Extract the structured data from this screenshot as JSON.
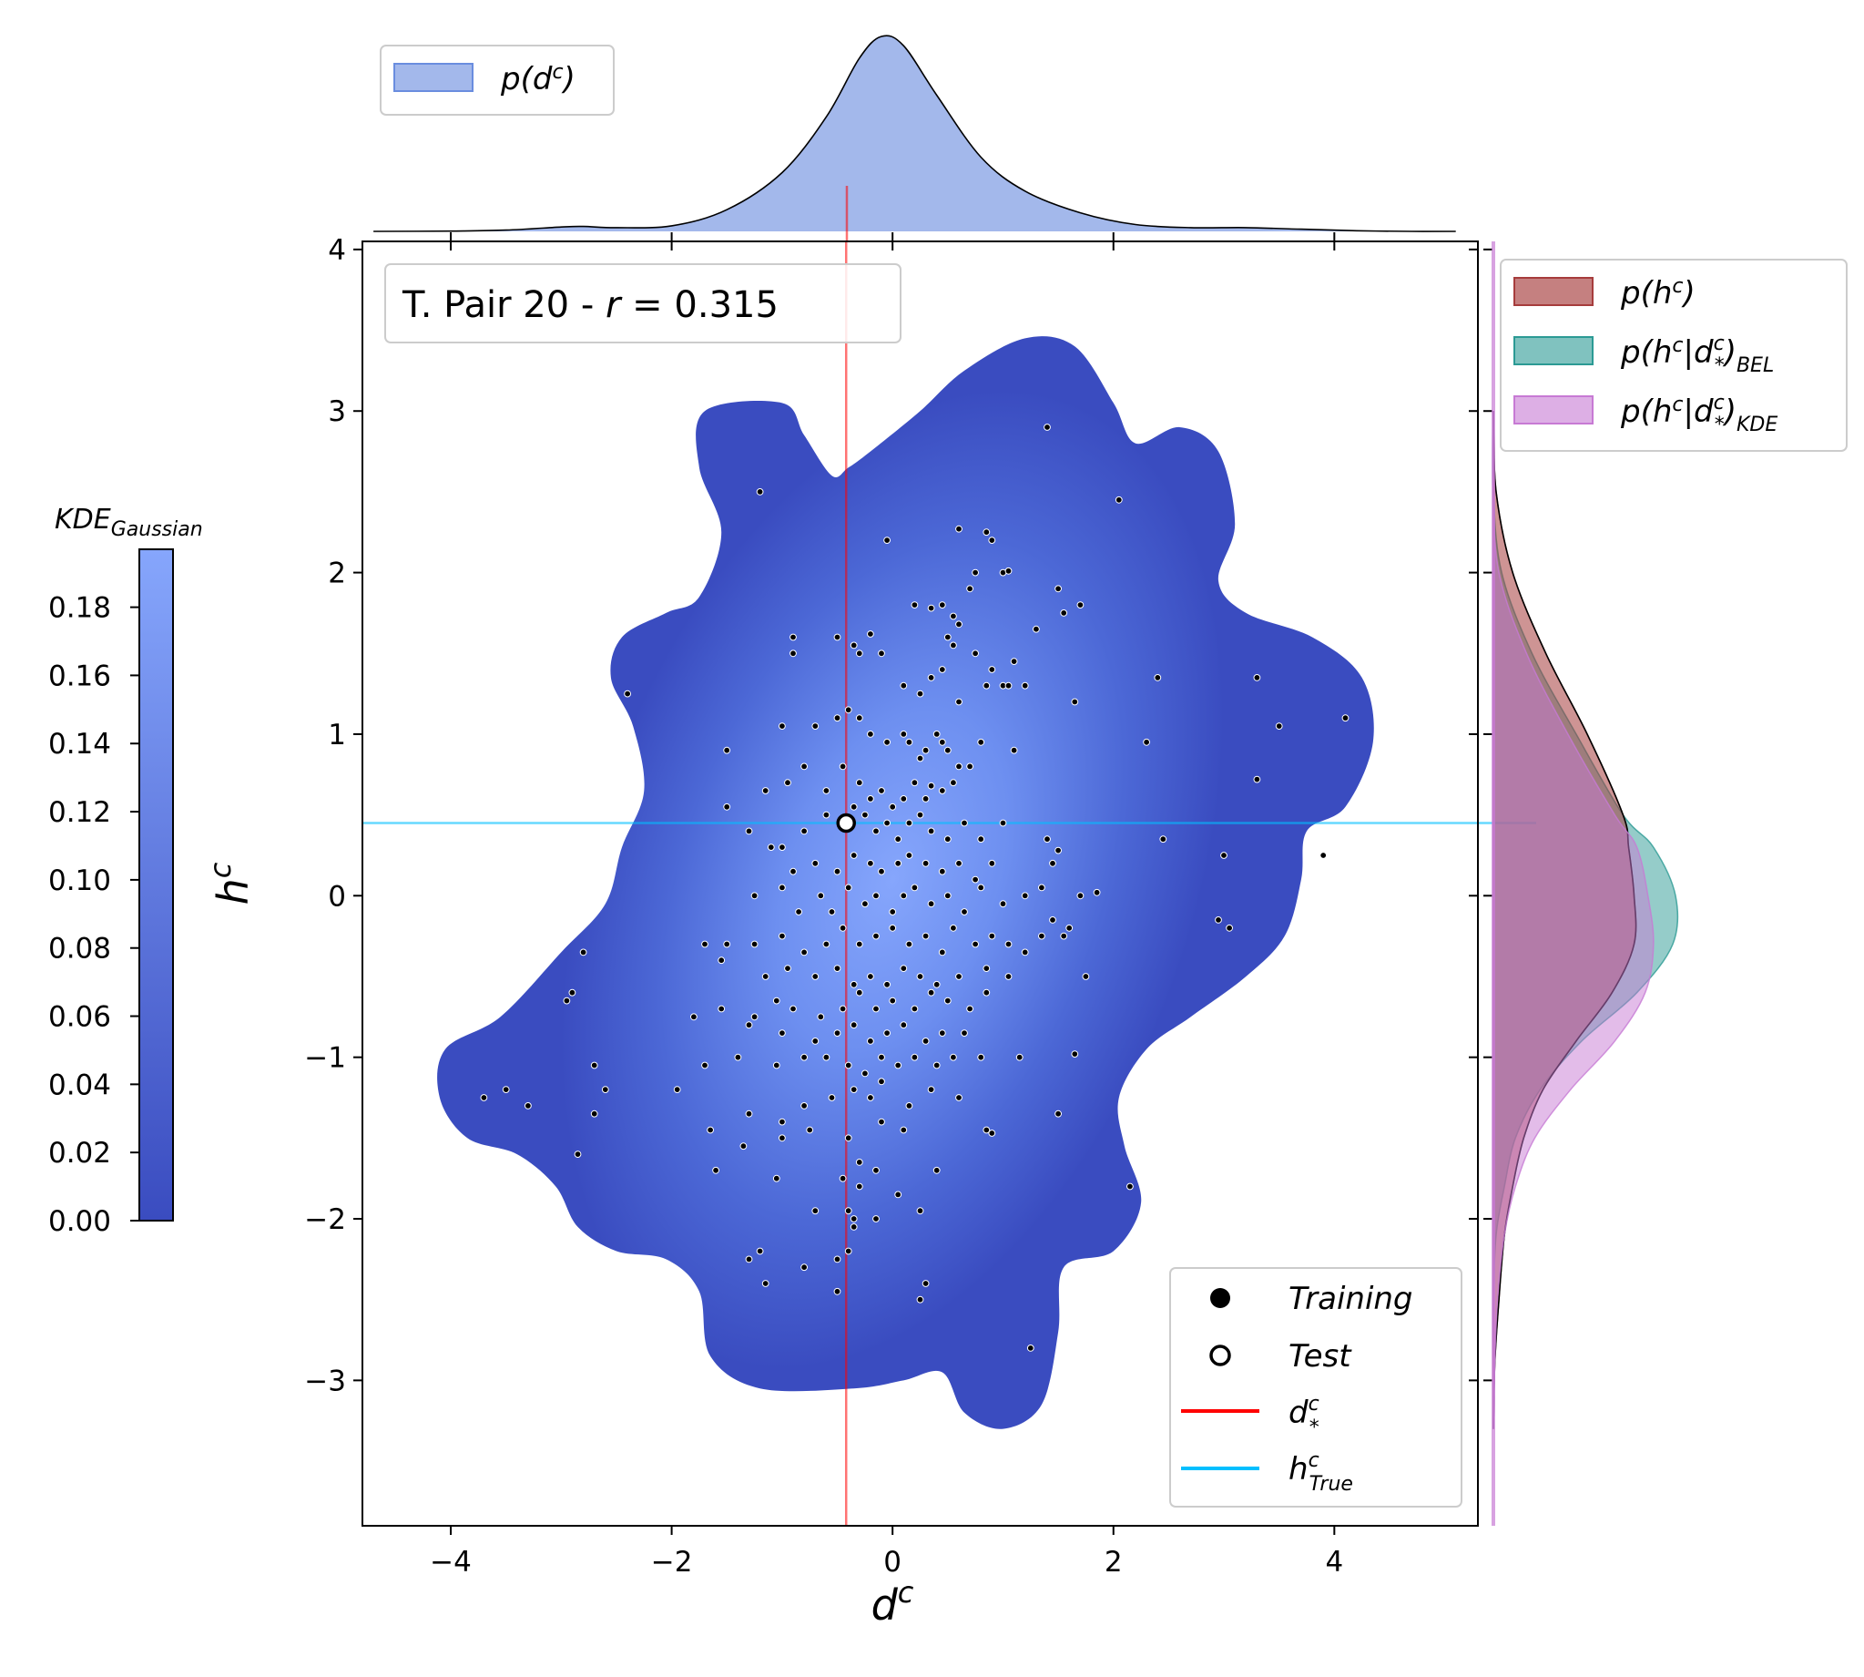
{
  "chart_data": [
    {
      "type": "scatter",
      "xlabel": "d",
      "xlabel_sup": "c",
      "ylabel": "h",
      "ylabel_sup": "c",
      "xlim": [
        -4.8,
        5.3
      ],
      "ylim": [
        -3.9,
        4.05
      ],
      "xticks": [
        -4,
        -2,
        0,
        2,
        4
      ],
      "yticks": [
        -3,
        -2,
        -1,
        0,
        1,
        2,
        3,
        4
      ],
      "grid": false,
      "annotation": {
        "prefix": "T. Pair 20 - ",
        "var": "r",
        "suffix": " = 0.315"
      },
      "reference_lines": {
        "d_star": -0.42,
        "h_true": 0.45
      },
      "test_point": {
        "x": -0.42,
        "y": 0.45
      },
      "kde_colorbar": {
        "title_main": "KDE",
        "title_sub": "Gaussian",
        "ticks": [
          "0.00",
          "0.02",
          "0.04",
          "0.06",
          "0.08",
          "0.10",
          "0.12",
          "0.14",
          "0.16",
          "0.18"
        ],
        "max": 0.197,
        "color_low": "#3a4cc0",
        "color_high": "#86a6fc"
      },
      "legend_main": [
        {
          "label": "Training",
          "marker": "filled-circle"
        },
        {
          "label": "Test",
          "marker": "open-circle"
        },
        {
          "label": "d",
          "sup": "c",
          "sub": "*",
          "color": "#ff0000"
        },
        {
          "label": "h",
          "sup": "c",
          "sub": "True",
          "color": "#00bfff"
        }
      ],
      "training_points": [
        [
          -1.2,
          2.5
        ],
        [
          -0.05,
          2.2
        ],
        [
          0.6,
          2.27
        ],
        [
          0.85,
          2.25
        ],
        [
          0.9,
          2.2
        ],
        [
          0.75,
          2.0
        ],
        [
          1.0,
          2.0
        ],
        [
          1.05,
          2.01
        ],
        [
          0.2,
          1.8
        ],
        [
          0.35,
          1.78
        ],
        [
          0.45,
          1.8
        ],
        [
          0.55,
          1.73
        ],
        [
          0.6,
          1.68
        ],
        [
          0.7,
          1.9
        ],
        [
          1.4,
          2.9
        ],
        [
          2.05,
          2.45
        ],
        [
          1.5,
          1.9
        ],
        [
          1.7,
          1.8
        ],
        [
          1.3,
          1.65
        ],
        [
          1.55,
          1.75
        ],
        [
          -2.4,
          1.25
        ],
        [
          -0.9,
          1.6
        ],
        [
          -0.9,
          1.5
        ],
        [
          -0.5,
          1.6
        ],
        [
          -0.35,
          1.55
        ],
        [
          -0.3,
          1.5
        ],
        [
          -0.2,
          1.62
        ],
        [
          -0.1,
          1.5
        ],
        [
          0.1,
          1.3
        ],
        [
          0.25,
          1.25
        ],
        [
          0.35,
          1.35
        ],
        [
          0.45,
          1.4
        ],
        [
          0.5,
          1.6
        ],
        [
          0.55,
          1.55
        ],
        [
          0.6,
          1.2
        ],
        [
          0.75,
          1.5
        ],
        [
          0.85,
          1.3
        ],
        [
          0.9,
          1.4
        ],
        [
          1.0,
          1.3
        ],
        [
          1.1,
          1.45
        ],
        [
          1.05,
          1.3
        ],
        [
          1.2,
          1.3
        ],
        [
          1.65,
          1.2
        ],
        [
          2.4,
          1.35
        ],
        [
          3.3,
          1.35
        ],
        [
          3.5,
          1.05
        ],
        [
          4.1,
          1.1
        ],
        [
          2.3,
          0.95
        ],
        [
          3.3,
          0.72
        ],
        [
          -1.0,
          1.05
        ],
        [
          -0.7,
          1.05
        ],
        [
          -0.5,
          1.1
        ],
        [
          -0.4,
          1.15
        ],
        [
          -0.3,
          1.1
        ],
        [
          -0.2,
          1.0
        ],
        [
          -0.05,
          0.95
        ],
        [
          0.1,
          1.0
        ],
        [
          0.15,
          0.95
        ],
        [
          0.25,
          0.85
        ],
        [
          0.3,
          0.9
        ],
        [
          0.4,
          1.0
        ],
        [
          0.45,
          0.95
        ],
        [
          0.5,
          0.9
        ],
        [
          0.6,
          0.8
        ],
        [
          0.7,
          0.8
        ],
        [
          0.8,
          0.95
        ],
        [
          1.1,
          0.9
        ],
        [
          -1.5,
          0.9
        ],
        [
          -1.5,
          0.55
        ],
        [
          -0.95,
          0.7
        ],
        [
          -1.15,
          0.65
        ],
        [
          -0.8,
          0.8
        ],
        [
          -0.6,
          0.65
        ],
        [
          -0.45,
          0.8
        ],
        [
          -0.3,
          0.7
        ],
        [
          -0.2,
          0.6
        ],
        [
          -0.1,
          0.65
        ],
        [
          0.0,
          0.55
        ],
        [
          0.1,
          0.6
        ],
        [
          0.2,
          0.7
        ],
        [
          0.3,
          0.6
        ],
        [
          0.35,
          0.68
        ],
        [
          0.45,
          0.65
        ],
        [
          0.55,
          0.7
        ],
        [
          -1.0,
          0.3
        ],
        [
          -0.8,
          0.4
        ],
        [
          -0.6,
          0.5
        ],
        [
          -0.35,
          0.55
        ],
        [
          -0.25,
          0.5
        ],
        [
          -0.15,
          0.4
        ],
        [
          -0.05,
          0.45
        ],
        [
          0.05,
          0.35
        ],
        [
          0.15,
          0.45
        ],
        [
          0.25,
          0.5
        ],
        [
          0.35,
          0.4
        ],
        [
          0.5,
          0.35
        ],
        [
          0.65,
          0.45
        ],
        [
          0.8,
          0.35
        ],
        [
          1.0,
          0.45
        ],
        [
          1.4,
          0.35
        ],
        [
          1.45,
          0.2
        ],
        [
          1.5,
          0.28
        ],
        [
          2.45,
          0.35
        ],
        [
          3.0,
          0.25
        ],
        [
          3.9,
          0.25
        ],
        [
          -1.3,
          0.4
        ],
        [
          -1.1,
          0.3
        ],
        [
          -0.9,
          0.15
        ],
        [
          -0.7,
          0.2
        ],
        [
          -0.5,
          0.15
        ],
        [
          -0.35,
          0.25
        ],
        [
          -0.2,
          0.2
        ],
        [
          -0.1,
          0.15
        ],
        [
          0.05,
          0.2
        ],
        [
          0.15,
          0.25
        ],
        [
          0.3,
          0.2
        ],
        [
          0.45,
          0.15
        ],
        [
          0.6,
          0.2
        ],
        [
          0.75,
          0.1
        ],
        [
          0.9,
          0.2
        ],
        [
          -1.25,
          0.0
        ],
        [
          -1.0,
          0.05
        ],
        [
          -0.85,
          -0.1
        ],
        [
          -0.65,
          0.0
        ],
        [
          -0.55,
          -0.1
        ],
        [
          -0.4,
          0.05
        ],
        [
          -0.25,
          -0.05
        ],
        [
          -0.15,
          0.0
        ],
        [
          0.0,
          -0.1
        ],
        [
          0.1,
          0.0
        ],
        [
          0.2,
          0.05
        ],
        [
          0.35,
          -0.05
        ],
        [
          0.5,
          0.0
        ],
        [
          0.65,
          -0.1
        ],
        [
          0.8,
          0.05
        ],
        [
          1.0,
          -0.05
        ],
        [
          1.2,
          0.0
        ],
        [
          1.35,
          0.05
        ],
        [
          1.7,
          0.0
        ],
        [
          1.85,
          0.02
        ],
        [
          1.45,
          -0.15
        ],
        [
          1.6,
          -0.2
        ],
        [
          1.55,
          -0.25
        ],
        [
          2.95,
          -0.15
        ],
        [
          3.05,
          -0.2
        ],
        [
          -1.7,
          -0.3
        ],
        [
          -1.5,
          -0.3
        ],
        [
          -1.25,
          -0.3
        ],
        [
          -1.0,
          -0.25
        ],
        [
          -0.8,
          -0.35
        ],
        [
          -0.6,
          -0.3
        ],
        [
          -0.45,
          -0.2
        ],
        [
          -0.3,
          -0.3
        ],
        [
          -0.15,
          -0.25
        ],
        [
          0.0,
          -0.2
        ],
        [
          0.15,
          -0.3
        ],
        [
          0.3,
          -0.25
        ],
        [
          0.45,
          -0.35
        ],
        [
          0.55,
          -0.2
        ],
        [
          0.75,
          -0.3
        ],
        [
          0.9,
          -0.25
        ],
        [
          1.05,
          -0.3
        ],
        [
          1.2,
          -0.35
        ],
        [
          1.35,
          -0.25
        ],
        [
          -2.8,
          -0.35
        ],
        [
          -1.55,
          -0.4
        ],
        [
          -1.15,
          -0.5
        ],
        [
          -0.95,
          -0.45
        ],
        [
          -0.7,
          -0.5
        ],
        [
          -0.5,
          -0.45
        ],
        [
          -0.35,
          -0.55
        ],
        [
          -0.2,
          -0.5
        ],
        [
          -0.05,
          -0.55
        ],
        [
          0.1,
          -0.45
        ],
        [
          0.25,
          -0.5
        ],
        [
          0.4,
          -0.55
        ],
        [
          0.6,
          -0.5
        ],
        [
          0.85,
          -0.45
        ],
        [
          1.05,
          -0.5
        ],
        [
          1.75,
          -0.5
        ],
        [
          -1.8,
          -0.75
        ],
        [
          -1.55,
          -0.7
        ],
        [
          -1.25,
          -0.75
        ],
        [
          -1.05,
          -0.65
        ],
        [
          -0.9,
          -0.7
        ],
        [
          -0.65,
          -0.75
        ],
        [
          -0.45,
          -0.7
        ],
        [
          -0.3,
          -0.6
        ],
        [
          -0.15,
          -0.7
        ],
        [
          0.0,
          -0.65
        ],
        [
          0.2,
          -0.7
        ],
        [
          0.35,
          -0.6
        ],
        [
          0.5,
          -0.65
        ],
        [
          0.7,
          -0.7
        ],
        [
          0.85,
          -0.6
        ],
        [
          -2.9,
          -0.6
        ],
        [
          -2.95,
          -0.65
        ],
        [
          -1.3,
          -0.8
        ],
        [
          -1.0,
          -0.85
        ],
        [
          -0.7,
          -0.9
        ],
        [
          -0.5,
          -0.85
        ],
        [
          -0.35,
          -0.8
        ],
        [
          -0.2,
          -0.9
        ],
        [
          -0.05,
          -0.85
        ],
        [
          0.1,
          -0.8
        ],
        [
          0.3,
          -0.9
        ],
        [
          0.45,
          -0.85
        ],
        [
          0.65,
          -0.85
        ],
        [
          -1.7,
          -1.05
        ],
        [
          -1.4,
          -1.0
        ],
        [
          -1.05,
          -1.05
        ],
        [
          -0.8,
          -1.0
        ],
        [
          -0.6,
          -1.0
        ],
        [
          -0.4,
          -1.05
        ],
        [
          -0.25,
          -1.1
        ],
        [
          -0.1,
          -1.0
        ],
        [
          0.05,
          -1.05
        ],
        [
          0.2,
          -1.0
        ],
        [
          0.4,
          -1.05
        ],
        [
          0.55,
          -1.0
        ],
        [
          0.8,
          -1.0
        ],
        [
          1.15,
          -1.0
        ],
        [
          1.65,
          -0.98
        ],
        [
          -2.7,
          -1.05
        ],
        [
          -3.7,
          -1.25
        ],
        [
          -3.5,
          -1.2
        ],
        [
          -3.3,
          -1.3
        ],
        [
          -2.7,
          -1.35
        ],
        [
          -2.6,
          -1.2
        ],
        [
          -1.95,
          -1.2
        ],
        [
          -1.3,
          -1.35
        ],
        [
          -1.0,
          -1.4
        ],
        [
          -0.8,
          -1.3
        ],
        [
          -0.55,
          -1.25
        ],
        [
          -0.35,
          -1.2
        ],
        [
          -0.2,
          -1.25
        ],
        [
          -0.1,
          -1.15
        ],
        [
          0.15,
          -1.3
        ],
        [
          0.35,
          -1.2
        ],
        [
          0.6,
          -1.25
        ],
        [
          1.5,
          -1.35
        ],
        [
          -1.65,
          -1.45
        ],
        [
          -0.75,
          -1.45
        ],
        [
          -0.4,
          -1.5
        ],
        [
          -0.1,
          -1.4
        ],
        [
          0.1,
          -1.45
        ],
        [
          0.85,
          -1.45
        ],
        [
          0.9,
          -1.47
        ],
        [
          -2.85,
          -1.6
        ],
        [
          -1.35,
          -1.55
        ],
        [
          -1.0,
          -1.5
        ],
        [
          -0.3,
          -1.65
        ],
        [
          -1.6,
          -1.7
        ],
        [
          -0.15,
          -1.7
        ],
        [
          0.4,
          -1.7
        ],
        [
          -1.05,
          -1.75
        ],
        [
          -0.45,
          -1.75
        ],
        [
          -0.3,
          -1.8
        ],
        [
          0.05,
          -1.85
        ],
        [
          2.15,
          -1.8
        ],
        [
          -0.7,
          -1.95
        ],
        [
          -0.4,
          -1.95
        ],
        [
          -0.35,
          -2.0
        ],
        [
          -0.15,
          -2.0
        ],
        [
          0.25,
          -1.95
        ],
        [
          -1.2,
          -2.2
        ],
        [
          -1.3,
          -2.25
        ],
        [
          -0.35,
          -2.05
        ],
        [
          -0.8,
          -2.3
        ],
        [
          -0.5,
          -2.25
        ],
        [
          -0.4,
          -2.2
        ],
        [
          0.3,
          -2.4
        ],
        [
          -1.15,
          -2.4
        ],
        [
          -0.5,
          -2.45
        ],
        [
          0.25,
          -2.5
        ],
        [
          1.25,
          -2.8
        ]
      ]
    },
    {
      "type": "area",
      "legend": [
        {
          "label": "p",
          "sup": "c",
          "var": "d"
        }
      ],
      "x": [
        -4.7,
        -4.0,
        -3.5,
        -3.0,
        -2.8,
        -2.5,
        -2.0,
        -1.5,
        -1.0,
        -0.6,
        -0.3,
        -0.1,
        0.1,
        0.4,
        0.8,
        1.2,
        1.7,
        2.2,
        2.7,
        3.2,
        3.7,
        4.2,
        4.7,
        5.1
      ],
      "density": [
        0.0,
        0.001,
        0.004,
        0.014,
        0.016,
        0.012,
        0.018,
        0.07,
        0.19,
        0.37,
        0.56,
        0.63,
        0.6,
        0.44,
        0.24,
        0.13,
        0.06,
        0.022,
        0.012,
        0.012,
        0.007,
        0.002,
        0.0,
        0.0
      ],
      "color": "#6a8ddf"
    },
    {
      "type": "area",
      "orientation": "horizontal",
      "legend": [
        {
          "label": "p",
          "sup": "c",
          "var": "h"
        },
        {
          "label": "p",
          "sup": "c",
          "var": "h",
          "cond": "d",
          "cond_sup": "c",
          "cond_sub": "*",
          "sub": "BEL"
        },
        {
          "label": "p",
          "sup": "c",
          "var": "h",
          "cond": "d",
          "cond_sup": "c",
          "cond_sub": "*",
          "sub": "KDE"
        }
      ],
      "y": [
        3.0,
        2.5,
        2.0,
        1.5,
        1.0,
        0.5,
        0.3,
        0.0,
        -0.3,
        -0.6,
        -0.9,
        -1.2,
        -1.5,
        -1.8,
        -2.1,
        -2.5,
        -2.9,
        -3.3
      ],
      "series": [
        {
          "name": "p(h^c)",
          "color": "#a63c3c",
          "values": [
            0.0,
            0.01,
            0.07,
            0.19,
            0.34,
            0.47,
            0.49,
            0.51,
            0.51,
            0.43,
            0.3,
            0.18,
            0.11,
            0.07,
            0.04,
            0.02,
            0.005,
            0.0
          ]
        },
        {
          "name": "p(h^c|d*^c)_BEL",
          "color": "#2b9a94",
          "values": [
            0.0,
            0.0,
            0.03,
            0.14,
            0.3,
            0.47,
            0.58,
            0.66,
            0.65,
            0.52,
            0.32,
            0.17,
            0.08,
            0.04,
            0.01,
            0.0,
            0.0,
            0.0
          ]
        },
        {
          "name": "p(h^c|d*^c)_KDE",
          "color": "#c77ad4",
          "values": [
            0.0,
            0.0,
            0.02,
            0.12,
            0.27,
            0.44,
            0.52,
            0.56,
            0.58,
            0.55,
            0.44,
            0.28,
            0.15,
            0.08,
            0.04,
            0.015,
            0.005,
            0.0
          ]
        }
      ]
    }
  ]
}
